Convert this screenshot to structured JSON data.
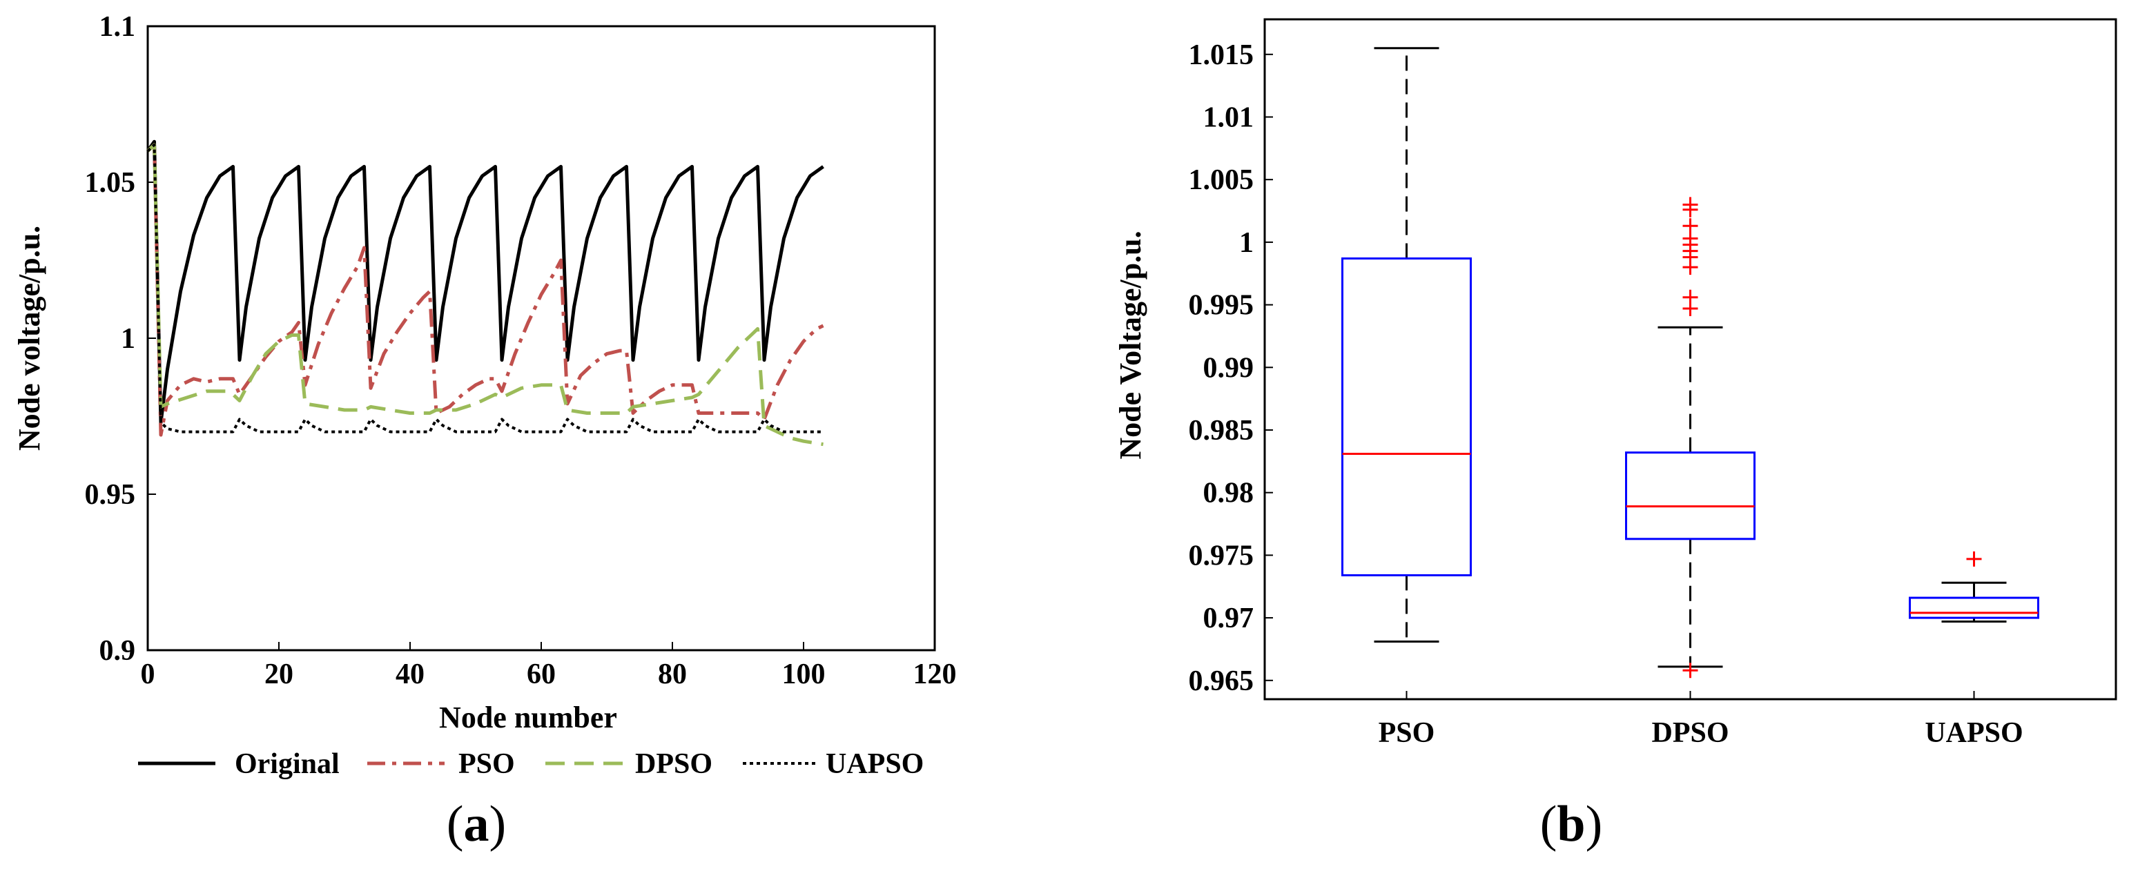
{
  "chart_data": [
    {
      "type": "line",
      "panel_label": "(a)",
      "panel_letter": "a",
      "xlabel": "Node number",
      "ylabel": "Node voltage/p.u.",
      "xlim": [
        0,
        120
      ],
      "ylim": [
        0.9,
        1.1
      ],
      "x_ticks": [
        "0",
        "20",
        "40",
        "60",
        "80",
        "100",
        "120"
      ],
      "y_ticks": [
        "0.9",
        "0.95",
        "1",
        "1.05",
        "1.1"
      ],
      "legend_position": "bottom",
      "legend": [
        "Original",
        "PSO",
        "DPSO",
        "UAPSO"
      ],
      "series": [
        {
          "name": "Original",
          "color": "#000000",
          "style": "solid",
          "x": [
            0,
            1,
            2,
            3,
            5,
            7,
            9,
            11,
            13,
            14,
            15,
            17,
            19,
            21,
            23,
            24,
            25,
            27,
            29,
            31,
            33,
            34,
            35,
            37,
            39,
            41,
            43,
            44,
            45,
            47,
            49,
            51,
            53,
            54,
            55,
            57,
            59,
            61,
            63,
            64,
            65,
            67,
            69,
            71,
            73,
            74,
            75,
            77,
            79,
            81,
            83,
            84,
            85,
            87,
            89,
            91,
            93,
            94,
            95,
            97,
            99,
            101,
            103
          ],
          "y": [
            1.06,
            1.063,
            0.973,
            0.99,
            1.015,
            1.033,
            1.045,
            1.052,
            1.055,
            0.993,
            1.01,
            1.032,
            1.045,
            1.052,
            1.055,
            0.993,
            1.01,
            1.032,
            1.045,
            1.052,
            1.055,
            0.993,
            1.01,
            1.032,
            1.045,
            1.052,
            1.055,
            0.993,
            1.01,
            1.032,
            1.045,
            1.052,
            1.055,
            0.993,
            1.01,
            1.032,
            1.045,
            1.052,
            1.055,
            0.993,
            1.01,
            1.032,
            1.045,
            1.052,
            1.055,
            0.993,
            1.01,
            1.032,
            1.045,
            1.052,
            1.055,
            0.993,
            1.01,
            1.032,
            1.045,
            1.052,
            1.055,
            0.993,
            1.01,
            1.032,
            1.045,
            1.052,
            1.055
          ]
        },
        {
          "name": "PSO",
          "color": "#c0504d",
          "style": "dashdot",
          "x": [
            0,
            1,
            2,
            3,
            5,
            7,
            9,
            11,
            13,
            14,
            16,
            18,
            20,
            22,
            23,
            24,
            26,
            28,
            30,
            32,
            33,
            34,
            36,
            38,
            40,
            42,
            43,
            44,
            46,
            48,
            50,
            52,
            53,
            54,
            56,
            58,
            60,
            62,
            63,
            64,
            66,
            68,
            70,
            72,
            73,
            74,
            76,
            78,
            80,
            82,
            83,
            84,
            86,
            88,
            90,
            92,
            93,
            94,
            96,
            98,
            100,
            102,
            103
          ],
          "y": [
            1.06,
            1.062,
            0.969,
            0.98,
            0.985,
            0.987,
            0.986,
            0.987,
            0.987,
            0.982,
            0.988,
            0.994,
            0.999,
            1.002,
            1.005,
            0.985,
            0.998,
            1.008,
            1.016,
            1.023,
            1.029,
            0.984,
            0.995,
            1.002,
            1.008,
            1.013,
            1.015,
            0.976,
            0.978,
            0.982,
            0.985,
            0.987,
            0.987,
            0.983,
            0.995,
            1.005,
            1.014,
            1.021,
            1.025,
            0.979,
            0.988,
            0.992,
            0.995,
            0.996,
            0.996,
            0.976,
            0.98,
            0.983,
            0.985,
            0.985,
            0.985,
            0.976,
            0.976,
            0.976,
            0.976,
            0.976,
            0.976,
            0.974,
            0.985,
            0.993,
            0.999,
            1.003,
            1.004
          ]
        },
        {
          "name": "DPSO",
          "color": "#9bbb59",
          "style": "dashed",
          "x": [
            0,
            1,
            2,
            3,
            6,
            9,
            12,
            13,
            14,
            16,
            18,
            20,
            22,
            23,
            24,
            27,
            30,
            33,
            34,
            37,
            40,
            43,
            44,
            47,
            50,
            53,
            54,
            57,
            60,
            63,
            64,
            67,
            70,
            73,
            74,
            77,
            80,
            83,
            84,
            86,
            88,
            90,
            92,
            93,
            94,
            96,
            98,
            100,
            103
          ],
          "y": [
            1.06,
            1.062,
            0.978,
            0.979,
            0.981,
            0.983,
            0.983,
            0.982,
            0.98,
            0.988,
            0.995,
            0.999,
            1.001,
            1.001,
            0.979,
            0.978,
            0.977,
            0.977,
            0.978,
            0.977,
            0.976,
            0.976,
            0.977,
            0.977,
            0.979,
            0.982,
            0.981,
            0.984,
            0.985,
            0.985,
            0.977,
            0.976,
            0.976,
            0.976,
            0.978,
            0.979,
            0.98,
            0.981,
            0.982,
            0.987,
            0.992,
            0.997,
            1.001,
            1.003,
            0.972,
            0.97,
            0.968,
            0.967,
            0.966
          ]
        },
        {
          "name": "UAPSO",
          "color": "#000000",
          "style": "dotted",
          "x": [
            0,
            1,
            2,
            3,
            5,
            8,
            11,
            13,
            14,
            15,
            17,
            20,
            23,
            24,
            25,
            27,
            30,
            33,
            34,
            35,
            37,
            40,
            43,
            44,
            45,
            47,
            50,
            53,
            54,
            55,
            57,
            60,
            63,
            64,
            65,
            67,
            70,
            73,
            74,
            75,
            77,
            80,
            83,
            84,
            85,
            87,
            90,
            93,
            94,
            95,
            97,
            100,
            103
          ],
          "y": [
            1.06,
            1.062,
            0.973,
            0.971,
            0.97,
            0.97,
            0.97,
            0.97,
            0.974,
            0.972,
            0.97,
            0.97,
            0.97,
            0.974,
            0.972,
            0.97,
            0.97,
            0.97,
            0.974,
            0.972,
            0.97,
            0.97,
            0.97,
            0.974,
            0.972,
            0.97,
            0.97,
            0.97,
            0.974,
            0.972,
            0.97,
            0.97,
            0.97,
            0.974,
            0.972,
            0.97,
            0.97,
            0.97,
            0.974,
            0.972,
            0.97,
            0.97,
            0.97,
            0.974,
            0.972,
            0.97,
            0.97,
            0.97,
            0.974,
            0.972,
            0.97,
            0.97,
            0.97
          ]
        }
      ]
    },
    {
      "type": "box",
      "panel_label": "(b)",
      "panel_letter": "b",
      "xlabel": "",
      "ylabel": "Node Voltage/p.u.",
      "ylim": [
        0.9635,
        1.0178
      ],
      "y_ticks": [
        "0.965",
        "0.97",
        "0.975",
        "0.98",
        "0.985",
        "0.99",
        "0.995",
        "1",
        "1.005",
        "1.01",
        "1.015"
      ],
      "categories": [
        "PSO",
        "DPSO",
        "UAPSO"
      ],
      "box_color": "#0000ff",
      "median_color": "#ff0000",
      "outlier_color": "#ff0000",
      "boxes": [
        {
          "name": "PSO",
          "whisker_low": 0.9681,
          "q1": 0.9734,
          "median": 0.9831,
          "q3": 0.9987,
          "whisker_high": 1.0155,
          "outliers": []
        },
        {
          "name": "DPSO",
          "whisker_low": 0.9661,
          "q1": 0.9763,
          "median": 0.9789,
          "q3": 0.9832,
          "whisker_high": 0.9932,
          "outliers": [
            0.9658,
            0.9947,
            0.9956,
            0.998,
            0.9988,
            0.9993,
            0.9998,
            1.0003,
            1.0013,
            1.0026,
            1.003
          ]
        },
        {
          "name": "UAPSO",
          "whisker_low": 0.9697,
          "q1": 0.97,
          "median": 0.9704,
          "q3": 0.9716,
          "whisker_high": 0.9728,
          "outliers": [
            0.9747
          ]
        }
      ]
    }
  ]
}
